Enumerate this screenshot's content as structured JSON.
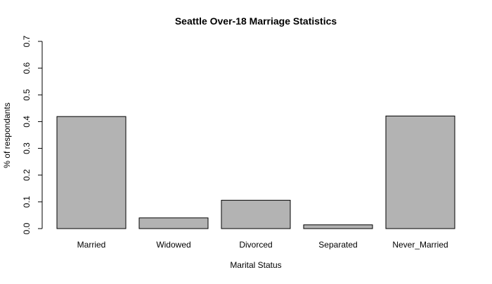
{
  "chart_data": {
    "type": "bar",
    "title": "Seattle Over-18 Marriage Statistics",
    "xlabel": "Marital Status",
    "ylabel": "% of respondants",
    "categories": [
      "Married",
      "Widowed",
      "Divorced",
      "Separated",
      "Never_Married"
    ],
    "values": [
      0.419,
      0.04,
      0.106,
      0.014,
      0.421
    ],
    "ylim": [
      0,
      0.7
    ],
    "yticks": [
      "0.0",
      "0.1",
      "0.2",
      "0.3",
      "0.4",
      "0.5",
      "0.6",
      "0.7"
    ],
    "grid": false,
    "legend": "none",
    "colors": {
      "bar_fill": "#b3b3b3",
      "bar_stroke": "#000000",
      "axis": "#000000"
    }
  }
}
